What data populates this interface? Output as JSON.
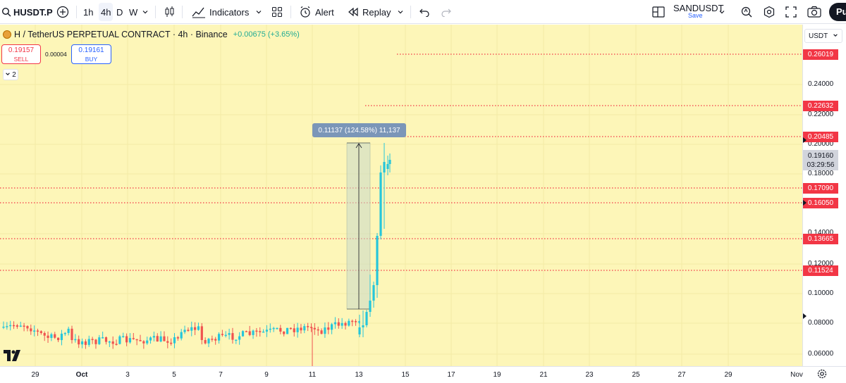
{
  "toolbar": {
    "symbol": "HUSDT.P",
    "intervals": [
      "1h",
      "4h",
      "D",
      "W"
    ],
    "active_interval": "4h",
    "indicators_label": "Indicators",
    "alert_label": "Alert",
    "replay_label": "Replay",
    "layout_name": "SANDUSDT",
    "layout_save": "Save",
    "publish_label": "Pu"
  },
  "legend": {
    "title": "H / TetherUS PERPETUAL CONTRACT · 4h · Binance",
    "change": "+0.00675 (+3.65%)"
  },
  "trade": {
    "sell_price": "0.19157",
    "sell_label": "SELL",
    "spread": "0.00004",
    "buy_price": "0.19161",
    "buy_label": "BUY",
    "collapse_count": "2"
  },
  "measure": {
    "text": "0.11137 (124.58%) 11,137"
  },
  "price_scale": {
    "currency": "USDT",
    "ticks": [
      "0.24000",
      "0.22000",
      "0.20000",
      "0.18000",
      "0.14000",
      "0.12000",
      "0.10000",
      "0.08000",
      "0.06000"
    ],
    "current_price": "0.19160",
    "countdown": "03:29:56"
  },
  "levels": [
    "0.26019",
    "0.22632",
    "0.20485",
    "0.17090",
    "0.16050",
    "0.13665",
    "0.11524"
  ],
  "time_scale": {
    "labels": [
      "29",
      "Oct",
      "3",
      "5",
      "7",
      "9",
      "11",
      "13",
      "15",
      "17",
      "19",
      "21",
      "23",
      "25",
      "27",
      "29",
      "Nov"
    ]
  },
  "colors": {
    "background": "#fdf6b8",
    "up": "#26c6da",
    "down": "#ef5350",
    "level": "#f23645",
    "accent": "#2962ff"
  }
}
